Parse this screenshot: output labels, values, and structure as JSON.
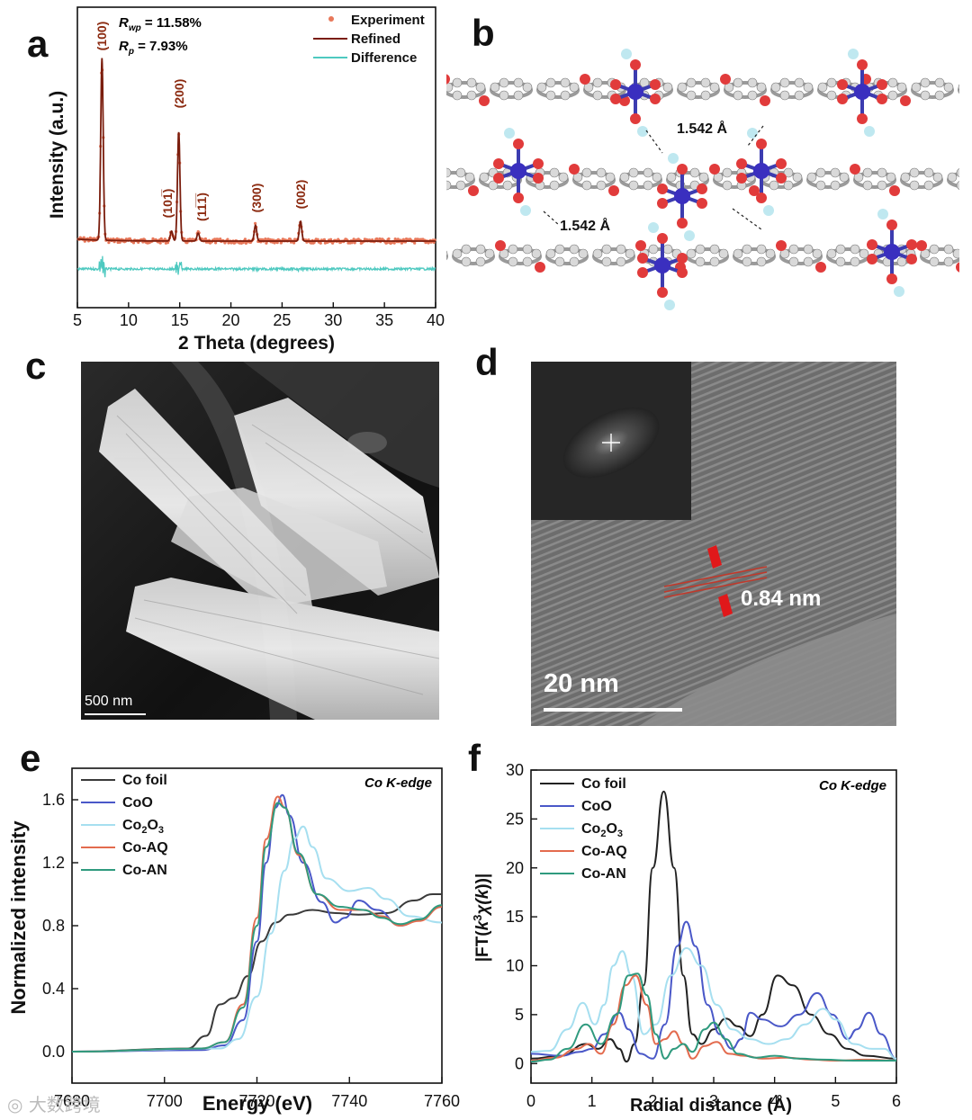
{
  "panels": {
    "a": {
      "label": "a"
    },
    "b": {
      "label": "b"
    },
    "c": {
      "label": "c"
    },
    "d": {
      "label": "d"
    },
    "e": {
      "label": "e"
    },
    "f": {
      "label": "f"
    }
  },
  "chart_data": [
    {
      "id": "a",
      "type": "line",
      "xlabel": "2 Theta (degrees)",
      "ylabel": "Intensity (a.u.)",
      "xlim": [
        5,
        40
      ],
      "xticks": [
        "5",
        "10",
        "15",
        "20",
        "25",
        "30",
        "35",
        "40"
      ],
      "annotations": {
        "rwp_sym": "R",
        "rwp_sub": "wp",
        "rwp_val": " = 11.58%",
        "rp_sym": "R",
        "rp_sub": "p",
        "rp_val": " = 7.93%"
      },
      "legend": [
        "Experiment",
        "Refined",
        "Difference"
      ],
      "peaks": [
        {
          "label": "(100)",
          "x": 7.4,
          "height": 0.92
        },
        {
          "label": "(200)",
          "x": 14.9,
          "height": 0.55
        },
        {
          "label": "(10̅1)",
          "x": 14.2,
          "height": 0.05
        },
        {
          "label": "(1̅1̅1)",
          "x": 16.8,
          "height": 0.04
        },
        {
          "label": "(300)",
          "x": 22.4,
          "height": 0.08
        },
        {
          "label": "(002)",
          "x": 26.8,
          "height": 0.1
        }
      ],
      "peak_labels": [
        "(100)",
        "(200)",
        "(101̅)",
        "(11̅1̅)",
        "(300)",
        "(002)"
      ],
      "colors": {
        "experiment": "#e8785a",
        "refined": "#7a1d0d",
        "difference": "#4ec9c0"
      }
    },
    {
      "id": "e",
      "type": "line",
      "title": "Co K-edge",
      "xlabel": "Energy (eV)",
      "ylabel": "Normalized intensity",
      "xlim": [
        7680,
        7760
      ],
      "ylim": [
        -0.2,
        1.8
      ],
      "xticks": [
        "7680",
        "7700",
        "7720",
        "7740",
        "7760"
      ],
      "yticks": [
        "0.0",
        "0.4",
        "0.8",
        "1.2",
        "1.6"
      ],
      "series": [
        {
          "name": "Co foil",
          "label_main": "Co foil",
          "color": "#3a3a3a",
          "points": [
            [
              7680,
              0
            ],
            [
              7705,
              0.02
            ],
            [
              7709,
              0.1
            ],
            [
              7712,
              0.3
            ],
            [
              7715,
              0.34
            ],
            [
              7718,
              0.48
            ],
            [
              7721,
              0.7
            ],
            [
              7724,
              0.82
            ],
            [
              7727,
              0.87
            ],
            [
              7732,
              0.9
            ],
            [
              7737,
              0.88
            ],
            [
              7742,
              0.87
            ],
            [
              7748,
              0.88
            ],
            [
              7754,
              0.96
            ],
            [
              7758,
              1.0
            ],
            [
              7760,
              1.0
            ]
          ]
        },
        {
          "name": "CoO",
          "label_main": "CoO",
          "color": "#4a58c8",
          "points": [
            [
              7680,
              0
            ],
            [
              7708,
              0.01
            ],
            [
              7713,
              0.04
            ],
            [
              7717,
              0.2
            ],
            [
              7720,
              0.7
            ],
            [
              7722,
              1.2
            ],
            [
              7724,
              1.55
            ],
            [
              7725.5,
              1.63
            ],
            [
              7727,
              1.5
            ],
            [
              7730,
              1.2
            ],
            [
              7734,
              0.95
            ],
            [
              7737,
              0.82
            ],
            [
              7739,
              0.85
            ],
            [
              7742,
              0.96
            ],
            [
              7746,
              0.9
            ],
            [
              7751,
              0.8
            ],
            [
              7755,
              0.84
            ],
            [
              7760,
              0.92
            ]
          ]
        },
        {
          "name": "Co2O3",
          "label_main": "Co",
          "label_sub1": "2",
          "label_mid": "O",
          "label_sub2": "3",
          "color": "#a6dff0",
          "points": [
            [
              7680,
              0
            ],
            [
              7712,
              0.02
            ],
            [
              7716,
              0.08
            ],
            [
              7720,
              0.35
            ],
            [
              7723,
              0.75
            ],
            [
              7726,
              1.15
            ],
            [
              7728,
              1.35
            ],
            [
              7730,
              1.43
            ],
            [
              7732,
              1.3
            ],
            [
              7735,
              1.1
            ],
            [
              7740,
              1.02
            ],
            [
              7744,
              1.04
            ],
            [
              7748,
              0.97
            ],
            [
              7753,
              0.86
            ],
            [
              7760,
              0.82
            ]
          ]
        },
        {
          "name": "Co-AQ",
          "label_main": "Co-AQ",
          "color": "#e36b4e",
          "points": [
            [
              7680,
              0
            ],
            [
              7708,
              0.02
            ],
            [
              7713,
              0.06
            ],
            [
              7717,
              0.3
            ],
            [
              7720,
              0.85
            ],
            [
              7722,
              1.35
            ],
            [
              7724.5,
              1.62
            ],
            [
              7726,
              1.55
            ],
            [
              7729,
              1.25
            ],
            [
              7733,
              1.0
            ],
            [
              7738,
              0.9
            ],
            [
              7743,
              0.9
            ],
            [
              7747,
              0.86
            ],
            [
              7751,
              0.8
            ],
            [
              7755,
              0.83
            ],
            [
              7760,
              0.92
            ]
          ]
        },
        {
          "name": "Co-AN",
          "label_main": "Co-AN",
          "color": "#2f9a7e",
          "points": [
            [
              7680,
              0
            ],
            [
              7708,
              0.02
            ],
            [
              7713,
              0.06
            ],
            [
              7717,
              0.28
            ],
            [
              7720,
              0.8
            ],
            [
              7722,
              1.3
            ],
            [
              7724.5,
              1.58
            ],
            [
              7726,
              1.55
            ],
            [
              7729,
              1.26
            ],
            [
              7733,
              1.0
            ],
            [
              7738,
              0.92
            ],
            [
              7743,
              0.9
            ],
            [
              7747,
              0.85
            ],
            [
              7751,
              0.81
            ],
            [
              7755,
              0.84
            ],
            [
              7760,
              0.93
            ]
          ]
        }
      ]
    },
    {
      "id": "f",
      "type": "line",
      "title": "Co K-edge",
      "xlabel": "Radial distance (Å)",
      "ylabel_parts": {
        "pre": "|FT(",
        "k": "k",
        "sup": "3",
        "chi": "χ(",
        "k2": "k",
        "post": "))|"
      },
      "xlim": [
        0,
        6
      ],
      "ylim": [
        -2,
        30
      ],
      "xticks": [
        "0",
        "1",
        "2",
        "3",
        "4",
        "5",
        "6"
      ],
      "yticks": [
        "0",
        "5",
        "10",
        "15",
        "20",
        "25",
        "30"
      ],
      "series": [
        {
          "name": "Co foil",
          "label_main": "Co foil",
          "color": "#222222",
          "points": [
            [
              0,
              0.5
            ],
            [
              0.5,
              0.8
            ],
            [
              0.9,
              2
            ],
            [
              1.1,
              1.5
            ],
            [
              1.3,
              2.5
            ],
            [
              1.45,
              1.5
            ],
            [
              1.57,
              0.2
            ],
            [
              1.7,
              2
            ],
            [
              1.85,
              8
            ],
            [
              2.0,
              20
            ],
            [
              2.18,
              27.8
            ],
            [
              2.35,
              20
            ],
            [
              2.5,
              9
            ],
            [
              2.65,
              3
            ],
            [
              2.8,
              2
            ],
            [
              3.0,
              3.5
            ],
            [
              3.2,
              4.6
            ],
            [
              3.4,
              3.8
            ],
            [
              3.6,
              2.8
            ],
            [
              3.8,
              5
            ],
            [
              4.05,
              9
            ],
            [
              4.3,
              8
            ],
            [
              4.6,
              5
            ],
            [
              4.9,
              3
            ],
            [
              5.2,
              1.5
            ],
            [
              5.5,
              0.8
            ],
            [
              6,
              0.5
            ]
          ]
        },
        {
          "name": "CoO",
          "label_main": "CoO",
          "color": "#4a58c8",
          "points": [
            [
              0,
              1
            ],
            [
              0.5,
              0.8
            ],
            [
              0.8,
              1.2
            ],
            [
              1.0,
              1.5
            ],
            [
              1.2,
              3
            ],
            [
              1.45,
              5.2
            ],
            [
              1.6,
              3.5
            ],
            [
              1.8,
              1
            ],
            [
              2.0,
              0.5
            ],
            [
              2.2,
              4
            ],
            [
              2.4,
              12
            ],
            [
              2.55,
              14.5
            ],
            [
              2.7,
              12
            ],
            [
              2.9,
              6
            ],
            [
              3.1,
              3
            ],
            [
              3.3,
              1.5
            ],
            [
              3.45,
              2.5
            ],
            [
              3.6,
              5.2
            ],
            [
              3.8,
              4.5
            ],
            [
              4.1,
              3.8
            ],
            [
              4.4,
              5
            ],
            [
              4.7,
              7.2
            ],
            [
              4.95,
              5
            ],
            [
              5.2,
              2.5
            ],
            [
              5.35,
              3.5
            ],
            [
              5.55,
              5.2
            ],
            [
              5.75,
              3
            ],
            [
              6,
              0.5
            ]
          ]
        },
        {
          "name": "Co2O3",
          "label_main": "Co",
          "label_sub1": "2",
          "label_mid": "O",
          "label_sub2": "3",
          "color": "#a6dff0",
          "points": [
            [
              0,
              1.2
            ],
            [
              0.3,
              1.3
            ],
            [
              0.6,
              3.5
            ],
            [
              0.85,
              6.2
            ],
            [
              1.05,
              4
            ],
            [
              1.2,
              6
            ],
            [
              1.35,
              10
            ],
            [
              1.5,
              11.5
            ],
            [
              1.65,
              9
            ],
            [
              1.85,
              3
            ],
            [
              2.05,
              4
            ],
            [
              2.3,
              9
            ],
            [
              2.55,
              11.8
            ],
            [
              2.8,
              10
            ],
            [
              3.05,
              6
            ],
            [
              3.3,
              3.5
            ],
            [
              3.6,
              2.5
            ],
            [
              3.9,
              2
            ],
            [
              4.2,
              2.5
            ],
            [
              4.5,
              4
            ],
            [
              4.8,
              5.6
            ],
            [
              5.0,
              4.5
            ],
            [
              5.3,
              2
            ],
            [
              5.6,
              1.5
            ],
            [
              5.8,
              1.5
            ],
            [
              6,
              0.5
            ]
          ]
        },
        {
          "name": "Co-AQ",
          "label_main": "Co-AQ",
          "color": "#e36b4e",
          "points": [
            [
              0,
              0.3
            ],
            [
              0.4,
              0.6
            ],
            [
              0.75,
              1.5
            ],
            [
              0.95,
              2
            ],
            [
              1.15,
              1
            ],
            [
              1.35,
              4
            ],
            [
              1.55,
              8
            ],
            [
              1.72,
              9
            ],
            [
              1.9,
              6
            ],
            [
              2.05,
              2
            ],
            [
              2.2,
              2.5
            ],
            [
              2.35,
              3.3
            ],
            [
              2.5,
              2
            ],
            [
              2.65,
              0.5
            ],
            [
              2.85,
              1.8
            ],
            [
              3.05,
              2.2
            ],
            [
              3.25,
              1
            ],
            [
              3.5,
              0.8
            ],
            [
              3.8,
              0.5
            ],
            [
              4.2,
              0.6
            ],
            [
              4.6,
              0.4
            ],
            [
              5,
              0.3
            ],
            [
              5.5,
              0.4
            ],
            [
              6,
              0.3
            ]
          ]
        },
        {
          "name": "Co-AN",
          "label_main": "Co-AN",
          "color": "#2f9a7e",
          "points": [
            [
              0,
              0.2
            ],
            [
              0.3,
              0.4
            ],
            [
              0.6,
              1.5
            ],
            [
              0.9,
              4
            ],
            [
              1.15,
              2
            ],
            [
              1.4,
              5
            ],
            [
              1.6,
              9
            ],
            [
              1.75,
              9.2
            ],
            [
              1.9,
              7
            ],
            [
              2.05,
              3
            ],
            [
              2.2,
              0.5
            ],
            [
              2.35,
              1.5
            ],
            [
              2.5,
              2
            ],
            [
              2.65,
              1.2
            ],
            [
              2.85,
              3.5
            ],
            [
              3.0,
              4.2
            ],
            [
              3.2,
              2.5
            ],
            [
              3.4,
              1
            ],
            [
              3.7,
              0.6
            ],
            [
              4.0,
              0.8
            ],
            [
              4.4,
              0.5
            ],
            [
              4.8,
              0.4
            ],
            [
              5.3,
              0.3
            ],
            [
              6,
              0.3
            ]
          ]
        }
      ]
    }
  ],
  "images": {
    "c": {
      "scalebar": "500 nm"
    },
    "d": {
      "scalebar": "20 nm",
      "spacing": "0.84 nm"
    },
    "b": {
      "bond1": "1.542 Å",
      "bond2": "1.542 Å"
    }
  },
  "watermark": "大数跨境"
}
